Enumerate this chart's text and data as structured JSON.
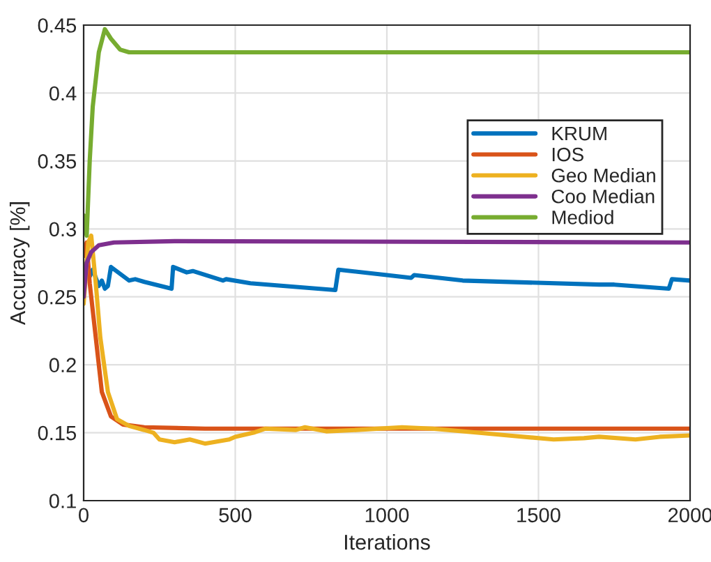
{
  "chart_data": {
    "type": "line",
    "xlabel": "Iterations",
    "ylabel": "Accuracy [%]",
    "xlim": [
      0,
      2000
    ],
    "xticks": [
      0,
      500,
      1000,
      1500,
      2000
    ],
    "ylim": [
      0.1,
      0.45
    ],
    "yticks": [
      0.1,
      0.15,
      0.2,
      0.25,
      0.3,
      0.35,
      0.4,
      0.45
    ],
    "grid": true,
    "legend": "top right",
    "series": [
      {
        "name": "KRUM",
        "color": "#0072bd",
        "x": [
          0,
          10,
          20,
          30,
          50,
          60,
          70,
          80,
          90,
          150,
          170,
          200,
          290,
          295,
          340,
          360,
          460,
          470,
          550,
          830,
          840,
          1000,
          1080,
          1090,
          1250,
          1700,
          1750,
          1930,
          1940,
          2000
        ],
        "values": [
          0.26,
          0.275,
          0.265,
          0.27,
          0.258,
          0.262,
          0.256,
          0.258,
          0.272,
          0.262,
          0.263,
          0.261,
          0.256,
          0.272,
          0.268,
          0.269,
          0.262,
          0.263,
          0.26,
          0.255,
          0.27,
          0.266,
          0.264,
          0.266,
          0.262,
          0.259,
          0.259,
          0.256,
          0.263,
          0.262
        ]
      },
      {
        "name": "IOS",
        "color": "#d95319",
        "x": [
          0,
          10,
          20,
          40,
          60,
          90,
          130,
          200,
          400,
          2000
        ],
        "values": [
          0.28,
          0.29,
          0.26,
          0.22,
          0.18,
          0.162,
          0.156,
          0.154,
          0.153,
          0.153
        ]
      },
      {
        "name": "Geo Median",
        "color": "#edb120",
        "x": [
          0,
          15,
          25,
          40,
          55,
          80,
          110,
          150,
          200,
          230,
          250,
          300,
          350,
          400,
          480,
          500,
          560,
          600,
          700,
          730,
          800,
          900,
          1050,
          1150,
          1300,
          1400,
          1550,
          1650,
          1700,
          1820,
          1900,
          2000
        ],
        "values": [
          0.245,
          0.29,
          0.295,
          0.26,
          0.22,
          0.18,
          0.16,
          0.155,
          0.152,
          0.15,
          0.145,
          0.143,
          0.145,
          0.142,
          0.145,
          0.147,
          0.15,
          0.153,
          0.152,
          0.154,
          0.151,
          0.152,
          0.154,
          0.153,
          0.15,
          0.148,
          0.145,
          0.146,
          0.147,
          0.145,
          0.147,
          0.148
        ]
      },
      {
        "name": "Coo Median",
        "color": "#7e2f8e",
        "x": [
          0,
          10,
          25,
          50,
          100,
          300,
          2000
        ],
        "values": [
          0.25,
          0.275,
          0.283,
          0.288,
          0.29,
          0.291,
          0.29
        ]
      },
      {
        "name": "Mediod",
        "color": "#77ac30",
        "x": [
          0,
          10,
          20,
          30,
          50,
          70,
          90,
          120,
          150,
          2000
        ],
        "values": [
          0.31,
          0.295,
          0.35,
          0.39,
          0.43,
          0.447,
          0.44,
          0.432,
          0.43,
          0.43
        ]
      }
    ]
  }
}
